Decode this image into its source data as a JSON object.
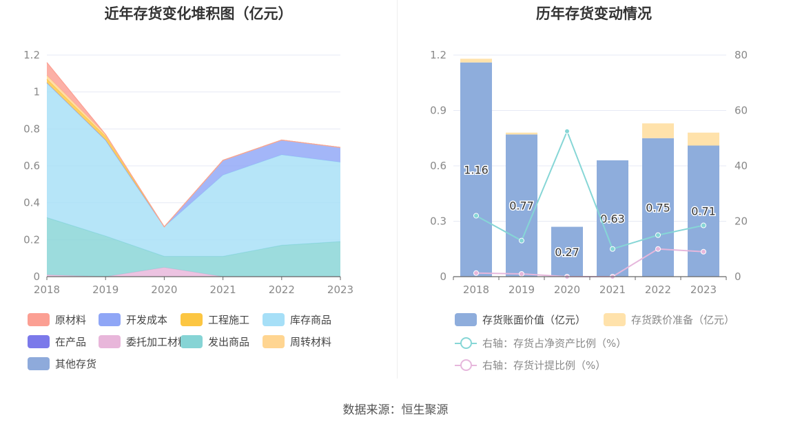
{
  "source_label": "数据来源：恒生聚源",
  "colors": {
    "grid": "#e6e9f4",
    "axis": "#666666",
    "tick_text": "#888888"
  },
  "chart_data": [
    {
      "type": "area",
      "stacked": true,
      "title": "近年存货变化堆积图（亿元）",
      "x": [
        "2018",
        "2019",
        "2020",
        "2021",
        "2022",
        "2023"
      ],
      "ylim": [
        0,
        1.2
      ],
      "yticks": [
        "0",
        "0.2",
        "0.4",
        "0.6",
        "0.8",
        "1",
        "1.2"
      ],
      "legend_position": "bottom",
      "series": [
        {
          "name": "其他存货",
          "color": "#8eaadb",
          "values": [
            0,
            0,
            0,
            0,
            0,
            0
          ]
        },
        {
          "name": "在产品",
          "color": "#7b79ea",
          "values": [
            0,
            0,
            0,
            0,
            0,
            0
          ]
        },
        {
          "name": "委托加工材料",
          "color": "#e8b6da",
          "values": [
            0.01,
            0,
            0.05,
            0,
            0,
            0
          ]
        },
        {
          "name": "发出商品",
          "color": "#86d4d5",
          "values": [
            0.31,
            0.22,
            0.06,
            0.11,
            0.17,
            0.19
          ]
        },
        {
          "name": "库存商品",
          "color": "#a6dff7",
          "values": [
            0.73,
            0.52,
            0.16,
            0.44,
            0.49,
            0.43
          ]
        },
        {
          "name": "开发成本",
          "color": "#8fa6f6",
          "values": [
            0,
            0,
            0,
            0.08,
            0.08,
            0.08
          ]
        },
        {
          "name": "工程施工",
          "color": "#fcc642",
          "values": [
            0.02,
            0.02,
            0,
            0,
            0,
            0
          ]
        },
        {
          "name": "周转材料",
          "color": "#ffd591",
          "values": [
            0.02,
            0.01,
            0,
            0,
            0,
            0
          ]
        },
        {
          "name": "原材料",
          "color": "#fb9f93",
          "values": [
            0.07,
            0,
            0,
            0,
            0,
            0
          ]
        }
      ],
      "legend_order": [
        "原材料",
        "开发成本",
        "工程施工",
        "库存商品",
        "在产品",
        "委托加工材料",
        "发出商品",
        "周转材料",
        "其他存货"
      ]
    },
    {
      "type": "bar",
      "stacked": true,
      "title": "历年存货变动情况",
      "categories": [
        "2018",
        "2019",
        "2020",
        "2021",
        "2022",
        "2023"
      ],
      "ylim": [
        0,
        1.2
      ],
      "yticks": [
        "0",
        "0.3",
        "0.6",
        "0.9",
        "1.2"
      ],
      "y2lim": [
        0,
        80
      ],
      "y2ticks": [
        "0",
        "20",
        "40",
        "60",
        "80"
      ],
      "legend_position": "bottom",
      "bar_series": [
        {
          "name": "存货账面价值（亿元）",
          "color": "#8eaddc",
          "values": [
            1.16,
            0.77,
            0.27,
            0.63,
            0.75,
            0.71
          ],
          "labels": [
            "1.16",
            "0.77",
            "0.27",
            "0.63",
            "0.75",
            "0.71"
          ]
        },
        {
          "name": "存货跌价准备（亿元）",
          "color": "#ffe2ab",
          "values": [
            0.02,
            0.01,
            0,
            0,
            0.08,
            0.07
          ]
        }
      ],
      "line_series": [
        {
          "name": "右轴：存货占净资产比例（%）",
          "color": "#86d6d6",
          "axis": "right",
          "values": [
            22,
            13,
            52.5,
            10,
            15,
            18.5
          ]
        },
        {
          "name": "右轴：存货计提比例（%）",
          "color": "#e6b7dc",
          "axis": "right",
          "values": [
            1.3,
            1.0,
            0,
            0,
            10,
            9
          ]
        }
      ]
    }
  ]
}
